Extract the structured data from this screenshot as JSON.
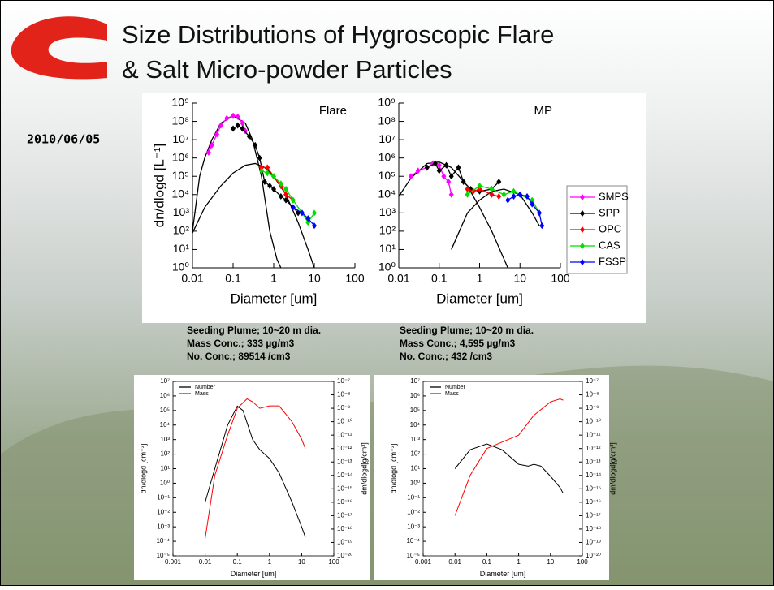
{
  "slide": {
    "title_lines": [
      "Size Distributions of Hygroscopic Flare",
      "& Salt Micro-powder Particles"
    ],
    "date": "2010/06/05",
    "notes": [
      [
        "Seeding Plume; 10~20 m dia.",
        "Mass Conc.; 333 µg/m3",
        "No. Conc.; 89514 /cm3"
      ],
      [
        "Seeding Plume; 10~20 m dia.",
        "Mass Conc.; 4,595 µg/m3",
        "No. Conc.; 432 /cm3"
      ]
    ]
  },
  "chart_data": [
    {
      "type": "line",
      "annotation": "Flare",
      "xlabel": "Diameter [um]",
      "ylabel": "dn/dlogd [L⁻¹]",
      "xscale": "log",
      "yscale": "log",
      "legend": false,
      "xlim": [
        0.01,
        100
      ],
      "xticks": [
        0.01,
        0.1,
        1,
        10,
        100
      ],
      "ylim": [
        1,
        1000000000.0
      ],
      "yticks": [
        {
          "value": 1,
          "label": "10⁰"
        },
        {
          "value": 10,
          "label": "10¹"
        },
        {
          "value": 100,
          "label": "10²"
        },
        {
          "value": 1000,
          "label": "10³"
        },
        {
          "value": 10000,
          "label": "10⁴"
        },
        {
          "value": 100000,
          "label": "10⁵"
        },
        {
          "value": 1000000,
          "label": "10⁶"
        },
        {
          "value": 10000000,
          "label": "10⁷"
        },
        {
          "value": 100000000,
          "label": "10⁸"
        },
        {
          "value": 1000000000,
          "label": "10⁹"
        }
      ],
      "series": [
        {
          "color": "#000000",
          "marker": false,
          "x": [
            0.01,
            0.015,
            0.02,
            0.03,
            0.05,
            0.1,
            0.2,
            0.3,
            0.5,
            0.8,
            1.2,
            1.5
          ],
          "values": [
            100,
            100000,
            1000000,
            10000000,
            80000000,
            200000000,
            80000000,
            10000000,
            100000,
            100,
            3,
            1
          ]
        },
        {
          "color": "#000000",
          "marker": false,
          "x": [
            0.01,
            0.02,
            0.05,
            0.1,
            0.2,
            0.35,
            0.6,
            1,
            2,
            4,
            7,
            10
          ],
          "values": [
            80,
            2000,
            30000,
            150000,
            400000,
            500000,
            300000,
            100000,
            10000,
            300,
            10,
            1
          ]
        },
        {
          "color": "#ff00ff",
          "marker": true,
          "x": [
            0.025,
            0.03,
            0.04,
            0.05,
            0.07,
            0.1,
            0.13,
            0.17,
            0.2
          ],
          "values": [
            2000000,
            5000000,
            20000000,
            60000000,
            150000000,
            200000000,
            180000000,
            80000000,
            30000000
          ]
        },
        {
          "color": "#000000",
          "marker": true,
          "x": [
            0.1,
            0.13,
            0.17,
            0.25,
            0.35,
            0.45,
            0.6,
            0.8,
            1,
            1.5,
            2,
            3,
            4
          ],
          "values": [
            40000000,
            60000000,
            40000000,
            15000000,
            5000000,
            1000000,
            50000,
            30000,
            20000,
            8000,
            5000,
            2000,
            1000
          ]
        },
        {
          "color": "#ff0000",
          "marker": true,
          "x": [
            0.5,
            0.7,
            1,
            1.5,
            2,
            3
          ],
          "values": [
            300000,
            300000,
            100000,
            30000,
            10000,
            5000
          ]
        },
        {
          "color": "#00dd00",
          "marker": true,
          "x": [
            0.5,
            0.7,
            1,
            1.5,
            2,
            3,
            5,
            7,
            10
          ],
          "values": [
            200000,
            150000,
            100000,
            40000,
            20000,
            5000,
            1000,
            300,
            1000
          ]
        },
        {
          "color": "#0000ff",
          "marker": true,
          "x": [
            3,
            5,
            7,
            10
          ],
          "values": [
            2000,
            1000,
            500,
            200
          ]
        }
      ]
    },
    {
      "type": "line",
      "annotation": "MP",
      "xlabel": "Diameter [um]",
      "xscale": "log",
      "yscale": "log",
      "legend": "right",
      "xlim": [
        0.01,
        100
      ],
      "xticks": [
        0.01,
        0.1,
        1,
        10,
        100
      ],
      "ylim": [
        1,
        1000000000.0
      ],
      "yticks": [
        {
          "value": 1,
          "label": "10⁰"
        },
        {
          "value": 10,
          "label": "10¹"
        },
        {
          "value": 100,
          "label": "10²"
        },
        {
          "value": 1000,
          "label": "10³"
        },
        {
          "value": 10000,
          "label": "10⁴"
        },
        {
          "value": 100000,
          "label": "10⁵"
        },
        {
          "value": 1000000,
          "label": "10⁶"
        },
        {
          "value": 10000000,
          "label": "10⁷"
        },
        {
          "value": 100000000,
          "label": "10⁸"
        },
        {
          "value": 1000000000,
          "label": "10⁹"
        }
      ],
      "series": [
        {
          "color": "#000000",
          "marker": false,
          "x": [
            0.01,
            0.02,
            0.05,
            0.1,
            0.2,
            0.5,
            1,
            2,
            5
          ],
          "values": [
            8000,
            80000,
            500000,
            600000,
            300000,
            30000,
            2000,
            100,
            1
          ]
        },
        {
          "color": "#000000",
          "marker": false,
          "x": [
            0.2,
            0.5,
            1,
            2,
            4,
            10,
            20,
            30
          ],
          "values": [
            10,
            1000,
            5000,
            15000,
            20000,
            10000,
            1000,
            200
          ]
        },
        {
          "name": "SMPS",
          "color": "#ff00ff",
          "marker": true,
          "x": [
            0.02,
            0.03,
            0.05,
            0.07,
            0.1,
            0.13,
            0.17,
            0.2
          ],
          "values": [
            100000,
            200000,
            300000,
            500000,
            400000,
            100000,
            50000,
            10000
          ]
        },
        {
          "name": "SPP",
          "color": "#000000",
          "marker": true,
          "x": [
            0.05,
            0.08,
            0.1,
            0.15,
            0.2,
            0.3,
            0.4,
            0.6,
            1,
            2,
            3
          ],
          "values": [
            300000,
            500000,
            200000,
            400000,
            100000,
            300000,
            50000,
            20000,
            15000,
            20000,
            50000
          ]
        },
        {
          "name": "OPC",
          "color": "#ff0000",
          "marker": true,
          "x": [
            0.5,
            0.7,
            1,
            2,
            3
          ],
          "values": [
            20000,
            15000,
            20000,
            10000,
            8000
          ]
        },
        {
          "name": "CAS",
          "color": "#00dd00",
          "marker": true,
          "x": [
            0.5,
            1,
            2,
            4,
            7,
            10,
            20,
            30
          ],
          "values": [
            10000,
            30000,
            20000,
            10000,
            15000,
            10000,
            5000,
            1000
          ]
        },
        {
          "name": "FSSP",
          "color": "#0000ff",
          "marker": true,
          "x": [
            5,
            7,
            10,
            15,
            20,
            30,
            35
          ],
          "values": [
            5000,
            8000,
            10000,
            8000,
            3000,
            1000,
            200
          ]
        }
      ]
    },
    {
      "type": "line",
      "xlabel": "Diameter [um]",
      "ylabel": "dn/dlogd [cm⁻³]",
      "y2label": "dm/dlogd[g/cm³]",
      "xscale": "log",
      "yscale": "log",
      "legend": "upper left",
      "xlim": [
        0.001,
        100
      ],
      "xticks": [
        0.001,
        0.01,
        0.1,
        1,
        10,
        100
      ],
      "ylim": [
        1e-05,
        10000000.0
      ],
      "yticks": [
        {
          "value": 1e-05,
          "label": "10⁻⁵"
        },
        {
          "value": 0.0001,
          "label": "10⁻⁴"
        },
        {
          "value": 0.001,
          "label": "10⁻³"
        },
        {
          "value": 0.01,
          "label": "10⁻²"
        },
        {
          "value": 0.1,
          "label": "10⁻¹"
        },
        {
          "value": 1,
          "label": "10⁰"
        },
        {
          "value": 10,
          "label": "10¹"
        },
        {
          "value": 100,
          "label": "10²"
        },
        {
          "value": 1000,
          "label": "10³"
        },
        {
          "value": 10000,
          "label": "10⁴"
        },
        {
          "value": 100000,
          "label": "10⁵"
        },
        {
          "value": 1000000,
          "label": "10⁶"
        },
        {
          "value": 10000000,
          "label": "10⁷"
        }
      ],
      "y2lim": [
        1e-20,
        1e-07
      ],
      "y2ticks": [
        {
          "value": 1e-20,
          "label": "10⁻²⁰"
        },
        {
          "value": 1e-19,
          "label": "10⁻¹⁹"
        },
        {
          "value": 1e-18,
          "label": "10⁻¹⁸"
        },
        {
          "value": 1e-17,
          "label": "10⁻¹⁷"
        },
        {
          "value": 1e-16,
          "label": "10⁻¹⁶"
        },
        {
          "value": 1e-15,
          "label": "10⁻¹⁵"
        },
        {
          "value": 1e-14,
          "label": "10⁻¹⁴"
        },
        {
          "value": 1e-13,
          "label": "10⁻¹³"
        },
        {
          "value": 1e-12,
          "label": "10⁻¹²"
        },
        {
          "value": 1e-11,
          "label": "10⁻¹¹"
        },
        {
          "value": 1e-10,
          "label": "10⁻¹⁰"
        },
        {
          "value": 1e-09,
          "label": "10⁻⁹"
        },
        {
          "value": 1e-08,
          "label": "10⁻⁸"
        },
        {
          "value": 1e-07,
          "label": "10⁻⁷"
        }
      ],
      "series": [
        {
          "name": "Number",
          "color": "#000000",
          "marker": false,
          "x": [
            0.01,
            0.02,
            0.05,
            0.1,
            0.15,
            0.3,
            0.5,
            1,
            2,
            5,
            10,
            13
          ],
          "values": [
            0.05,
            10,
            10000,
            200000,
            100000,
            1000,
            200,
            50,
            5,
            0.05,
            0.001,
            0.0002
          ]
        },
        {
          "name": "Mass",
          "color": "#ff0000",
          "marker": false,
          "axis": "y2",
          "x": [
            0.01,
            0.02,
            0.05,
            0.1,
            0.2,
            0.3,
            0.5,
            1,
            2,
            5,
            10,
            13
          ],
          "values": [
            2e-19,
            1e-14,
            1e-11,
            1e-09,
            5e-09,
            3e-09,
            1e-09,
            1.5e-09,
            1.5e-09,
            1e-10,
            5e-12,
            1e-12
          ]
        }
      ]
    },
    {
      "type": "line",
      "xlabel": "Diameter [um]",
      "ylabel": "dn/dlogd [cm⁻³]",
      "y2label": "dm/dlogd[g/cm³]",
      "xscale": "log",
      "yscale": "log",
      "legend": "upper left",
      "xlim": [
        0.001,
        100
      ],
      "xticks": [
        0.001,
        0.01,
        0.1,
        1,
        10,
        100
      ],
      "ylim": [
        1e-05,
        10000000.0
      ],
      "yticks": [
        {
          "value": 1e-05,
          "label": "10⁻⁵"
        },
        {
          "value": 0.0001,
          "label": "10⁻⁴"
        },
        {
          "value": 0.001,
          "label": "10⁻³"
        },
        {
          "value": 0.01,
          "label": "10⁻²"
        },
        {
          "value": 0.1,
          "label": "10⁻¹"
        },
        {
          "value": 1,
          "label": "10⁰"
        },
        {
          "value": 10,
          "label": "10¹"
        },
        {
          "value": 100,
          "label": "10²"
        },
        {
          "value": 1000,
          "label": "10³"
        },
        {
          "value": 10000,
          "label": "10⁴"
        },
        {
          "value": 100000,
          "label": "10⁵"
        },
        {
          "value": 1000000,
          "label": "10⁶"
        },
        {
          "value": 10000000,
          "label": "10⁷"
        }
      ],
      "y2lim": [
        1e-20,
        1e-07
      ],
      "y2ticks": [
        {
          "value": 1e-20,
          "label": "10⁻²⁰"
        },
        {
          "value": 1e-19,
          "label": "10⁻¹⁹"
        },
        {
          "value": 1e-18,
          "label": "10⁻¹⁸"
        },
        {
          "value": 1e-17,
          "label": "10⁻¹⁷"
        },
        {
          "value": 1e-16,
          "label": "10⁻¹⁶"
        },
        {
          "value": 1e-15,
          "label": "10⁻¹⁵"
        },
        {
          "value": 1e-14,
          "label": "10⁻¹⁴"
        },
        {
          "value": 1e-13,
          "label": "10⁻¹³"
        },
        {
          "value": 1e-12,
          "label": "10⁻¹²"
        },
        {
          "value": 1e-11,
          "label": "10⁻¹¹"
        },
        {
          "value": 1e-10,
          "label": "10⁻¹⁰"
        },
        {
          "value": 1e-09,
          "label": "10⁻⁹"
        },
        {
          "value": 1e-08,
          "label": "10⁻⁸"
        },
        {
          "value": 1e-07,
          "label": "10⁻⁷"
        }
      ],
      "series": [
        {
          "name": "Number",
          "color": "#000000",
          "marker": false,
          "x": [
            0.01,
            0.03,
            0.1,
            0.3,
            1,
            2,
            3,
            5,
            10,
            20,
            25
          ],
          "values": [
            10,
            200,
            500,
            200,
            20,
            15,
            20,
            15,
            3,
            0.5,
            0.2
          ]
        },
        {
          "name": "Mass",
          "color": "#ff0000",
          "marker": false,
          "axis": "y2",
          "x": [
            0.01,
            0.03,
            0.1,
            0.3,
            1,
            3,
            10,
            20,
            25
          ],
          "values": [
            1e-17,
            1e-14,
            1e-12,
            3e-12,
            1e-11,
            3e-10,
            3e-09,
            5e-09,
            4e-09
          ]
        }
      ]
    }
  ]
}
